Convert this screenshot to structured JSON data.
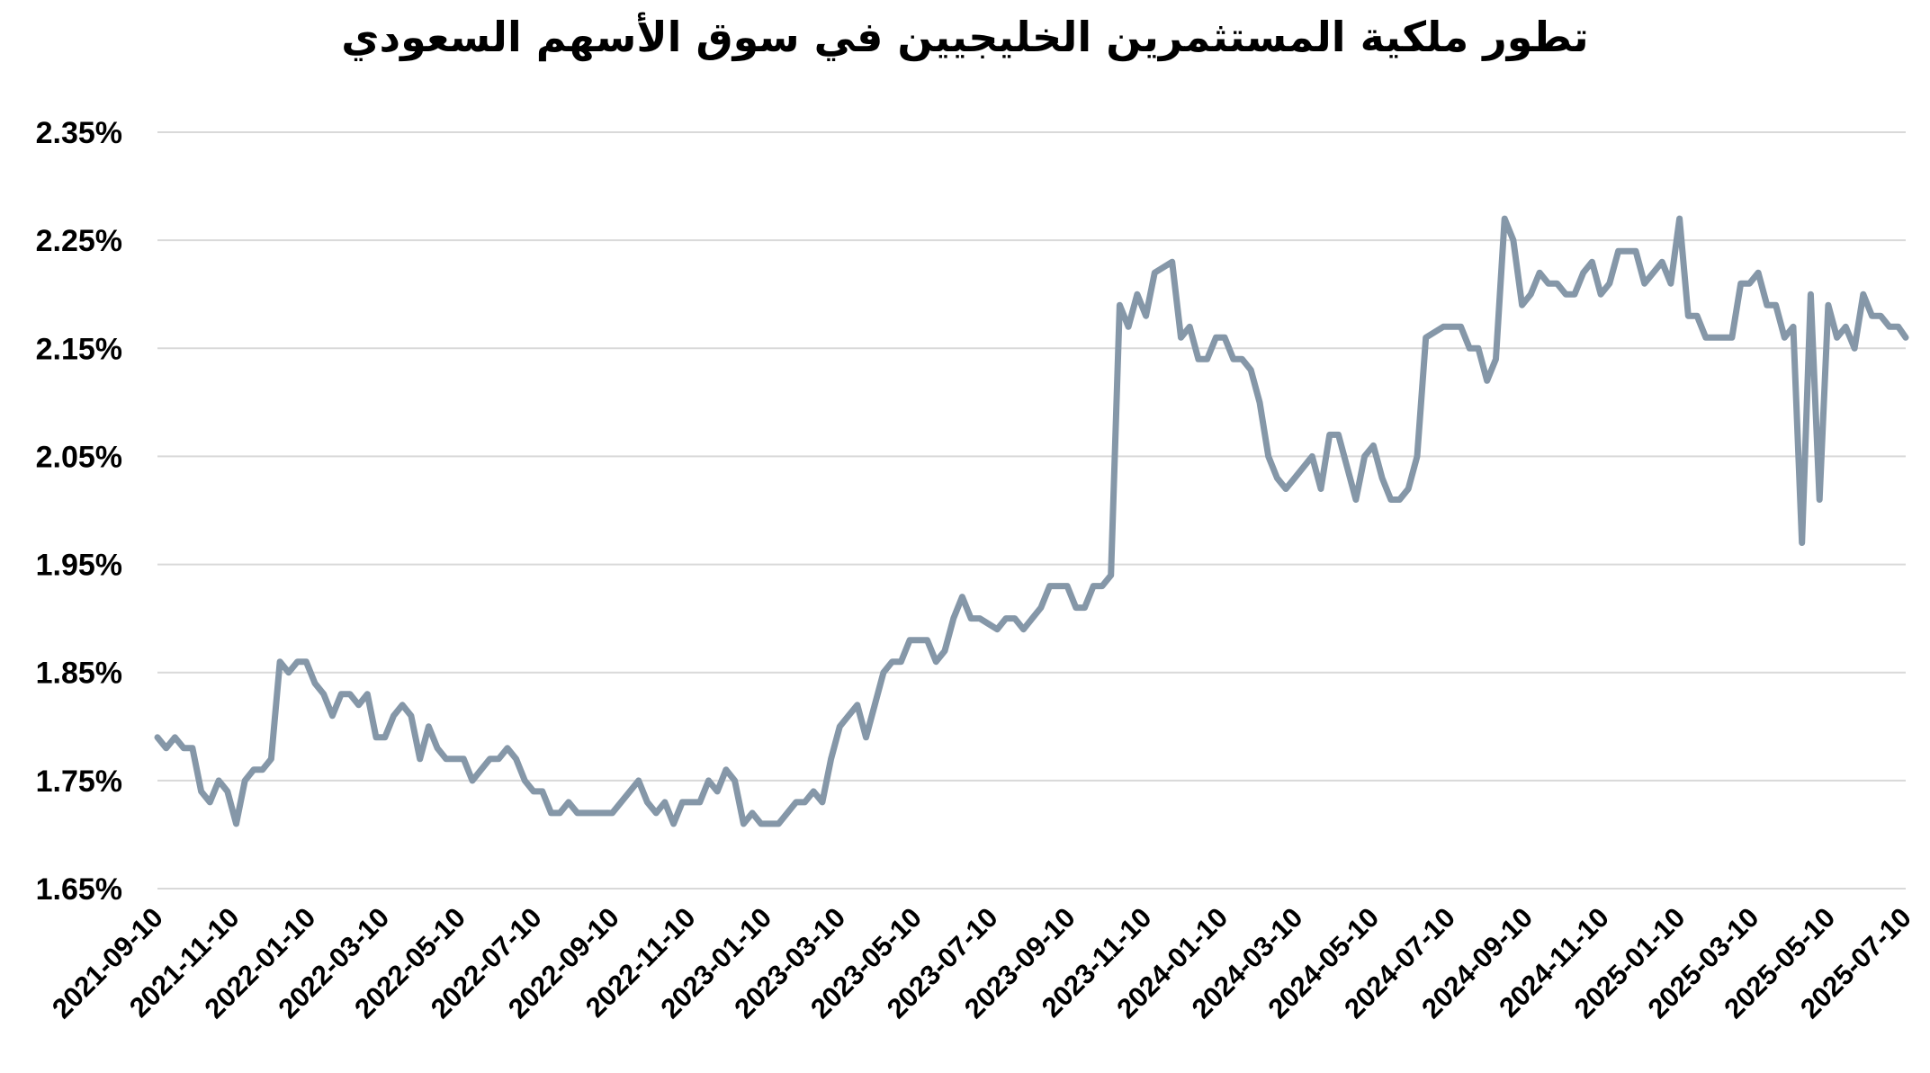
{
  "chart_data": {
    "type": "line",
    "title": "تطور ملكية المستثمرين الخليجيين في سوق الأسهم السعودي",
    "xlabel": "",
    "ylabel": "",
    "ylim": [
      1.65,
      2.35
    ],
    "y_ticks": [
      "1.65%",
      "1.75%",
      "1.85%",
      "1.95%",
      "2.05%",
      "2.15%",
      "2.25%",
      "2.35%"
    ],
    "y_tick_values": [
      1.65,
      1.75,
      1.85,
      1.95,
      2.05,
      2.15,
      2.25,
      2.35
    ],
    "x_ticks": [
      "2021-09-10",
      "2021-11-10",
      "2022-01-10",
      "2022-03-10",
      "2022-05-10",
      "2022-07-10",
      "2022-09-10",
      "2022-11-10",
      "2023-01-10",
      "2023-03-10",
      "2023-05-10",
      "2023-07-10",
      "2023-09-10",
      "2023-11-10",
      "2024-01-10",
      "2024-03-10",
      "2024-05-10",
      "2024-07-10",
      "2024-09-10",
      "2024-11-10",
      "2025-01-10",
      "2025-03-10",
      "2025-05-10",
      "2025-07-10"
    ],
    "x_range": [
      "2021-09-10",
      "2025-07-10"
    ],
    "grid": true,
    "legend": "none",
    "line_color": "#8597a8",
    "series": [
      {
        "points": [
          [
            "2021-09-10",
            1.79
          ],
          [
            "2021-09-17",
            1.78
          ],
          [
            "2021-09-24",
            1.79
          ],
          [
            "2021-10-01",
            1.78
          ],
          [
            "2021-10-08",
            1.78
          ],
          [
            "2021-10-15",
            1.74
          ],
          [
            "2021-10-22",
            1.73
          ],
          [
            "2021-10-29",
            1.75
          ],
          [
            "2021-11-05",
            1.74
          ],
          [
            "2021-11-12",
            1.71
          ],
          [
            "2021-11-19",
            1.75
          ],
          [
            "2021-11-26",
            1.76
          ],
          [
            "2021-12-03",
            1.76
          ],
          [
            "2021-12-10",
            1.77
          ],
          [
            "2021-12-17",
            1.86
          ],
          [
            "2021-12-24",
            1.85
          ],
          [
            "2021-12-31",
            1.86
          ],
          [
            "2022-01-07",
            1.86
          ],
          [
            "2022-01-14",
            1.84
          ],
          [
            "2022-01-21",
            1.83
          ],
          [
            "2022-01-28",
            1.81
          ],
          [
            "2022-02-04",
            1.83
          ],
          [
            "2022-02-11",
            1.83
          ],
          [
            "2022-02-18",
            1.82
          ],
          [
            "2022-02-25",
            1.83
          ],
          [
            "2022-03-04",
            1.79
          ],
          [
            "2022-03-11",
            1.79
          ],
          [
            "2022-03-18",
            1.81
          ],
          [
            "2022-03-25",
            1.82
          ],
          [
            "2022-04-01",
            1.81
          ],
          [
            "2022-04-08",
            1.77
          ],
          [
            "2022-04-15",
            1.8
          ],
          [
            "2022-04-22",
            1.78
          ],
          [
            "2022-04-29",
            1.77
          ],
          [
            "2022-05-06",
            1.77
          ],
          [
            "2022-05-13",
            1.77
          ],
          [
            "2022-05-20",
            1.75
          ],
          [
            "2022-05-27",
            1.76
          ],
          [
            "2022-06-03",
            1.77
          ],
          [
            "2022-06-10",
            1.77
          ],
          [
            "2022-06-17",
            1.78
          ],
          [
            "2022-06-24",
            1.77
          ],
          [
            "2022-07-01",
            1.75
          ],
          [
            "2022-07-08",
            1.74
          ],
          [
            "2022-07-15",
            1.74
          ],
          [
            "2022-07-22",
            1.72
          ],
          [
            "2022-07-29",
            1.72
          ],
          [
            "2022-08-05",
            1.73
          ],
          [
            "2022-08-12",
            1.72
          ],
          [
            "2022-08-19",
            1.72
          ],
          [
            "2022-08-26",
            1.72
          ],
          [
            "2022-09-02",
            1.72
          ],
          [
            "2022-09-09",
            1.72
          ],
          [
            "2022-09-16",
            1.73
          ],
          [
            "2022-09-23",
            1.74
          ],
          [
            "2022-09-30",
            1.75
          ],
          [
            "2022-10-07",
            1.73
          ],
          [
            "2022-10-14",
            1.72
          ],
          [
            "2022-10-21",
            1.73
          ],
          [
            "2022-10-28",
            1.71
          ],
          [
            "2022-11-04",
            1.73
          ],
          [
            "2022-11-11",
            1.73
          ],
          [
            "2022-11-18",
            1.73
          ],
          [
            "2022-11-25",
            1.75
          ],
          [
            "2022-12-02",
            1.74
          ],
          [
            "2022-12-09",
            1.76
          ],
          [
            "2022-12-16",
            1.75
          ],
          [
            "2022-12-23",
            1.71
          ],
          [
            "2022-12-30",
            1.72
          ],
          [
            "2023-01-06",
            1.71
          ],
          [
            "2023-01-13",
            1.71
          ],
          [
            "2023-01-20",
            1.71
          ],
          [
            "2023-01-27",
            1.72
          ],
          [
            "2023-02-03",
            1.73
          ],
          [
            "2023-02-10",
            1.73
          ],
          [
            "2023-02-17",
            1.74
          ],
          [
            "2023-02-24",
            1.73
          ],
          [
            "2023-03-03",
            1.77
          ],
          [
            "2023-03-10",
            1.8
          ],
          [
            "2023-03-17",
            1.81
          ],
          [
            "2023-03-24",
            1.82
          ],
          [
            "2023-03-31",
            1.79
          ],
          [
            "2023-04-07",
            1.82
          ],
          [
            "2023-04-14",
            1.85
          ],
          [
            "2023-04-21",
            1.86
          ],
          [
            "2023-04-28",
            1.86
          ],
          [
            "2023-05-05",
            1.88
          ],
          [
            "2023-05-12",
            1.88
          ],
          [
            "2023-05-19",
            1.88
          ],
          [
            "2023-05-26",
            1.86
          ],
          [
            "2023-06-02",
            1.87
          ],
          [
            "2023-06-09",
            1.9
          ],
          [
            "2023-06-16",
            1.92
          ],
          [
            "2023-06-23",
            1.9
          ],
          [
            "2023-06-30",
            1.9
          ],
          [
            "2023-07-07",
            1.895
          ],
          [
            "2023-07-14",
            1.89
          ],
          [
            "2023-07-21",
            1.9
          ],
          [
            "2023-07-28",
            1.9
          ],
          [
            "2023-08-04",
            1.89
          ],
          [
            "2023-08-11",
            1.9
          ],
          [
            "2023-08-18",
            1.91
          ],
          [
            "2023-08-25",
            1.93
          ],
          [
            "2023-09-01",
            1.93
          ],
          [
            "2023-09-08",
            1.93
          ],
          [
            "2023-09-15",
            1.91
          ],
          [
            "2023-09-22",
            1.91
          ],
          [
            "2023-09-29",
            1.93
          ],
          [
            "2023-10-06",
            1.93
          ],
          [
            "2023-10-13",
            1.94
          ],
          [
            "2023-10-20",
            2.19
          ],
          [
            "2023-10-27",
            2.17
          ],
          [
            "2023-11-03",
            2.2
          ],
          [
            "2023-11-10",
            2.18
          ],
          [
            "2023-11-17",
            2.22
          ],
          [
            "2023-11-24",
            2.225
          ],
          [
            "2023-12-01",
            2.23
          ],
          [
            "2023-12-08",
            2.16
          ],
          [
            "2023-12-15",
            2.17
          ],
          [
            "2023-12-22",
            2.14
          ],
          [
            "2023-12-29",
            2.14
          ],
          [
            "2024-01-05",
            2.16
          ],
          [
            "2024-01-12",
            2.16
          ],
          [
            "2024-01-19",
            2.14
          ],
          [
            "2024-01-26",
            2.14
          ],
          [
            "2024-02-02",
            2.13
          ],
          [
            "2024-02-09",
            2.1
          ],
          [
            "2024-02-16",
            2.05
          ],
          [
            "2024-02-23",
            2.03
          ],
          [
            "2024-03-01",
            2.02
          ],
          [
            "2024-03-08",
            2.03
          ],
          [
            "2024-03-15",
            2.04
          ],
          [
            "2024-03-22",
            2.05
          ],
          [
            "2024-03-29",
            2.02
          ],
          [
            "2024-04-05",
            2.07
          ],
          [
            "2024-04-12",
            2.07
          ],
          [
            "2024-04-19",
            2.04
          ],
          [
            "2024-04-26",
            2.01
          ],
          [
            "2024-05-03",
            2.05
          ],
          [
            "2024-05-10",
            2.06
          ],
          [
            "2024-05-17",
            2.03
          ],
          [
            "2024-05-24",
            2.01
          ],
          [
            "2024-05-31",
            2.01
          ],
          [
            "2024-06-07",
            2.02
          ],
          [
            "2024-06-14",
            2.05
          ],
          [
            "2024-06-21",
            2.16
          ],
          [
            "2024-06-28",
            2.165
          ],
          [
            "2024-07-05",
            2.17
          ],
          [
            "2024-07-12",
            2.17
          ],
          [
            "2024-07-19",
            2.17
          ],
          [
            "2024-07-26",
            2.15
          ],
          [
            "2024-08-02",
            2.15
          ],
          [
            "2024-08-09",
            2.12
          ],
          [
            "2024-08-16",
            2.14
          ],
          [
            "2024-08-23",
            2.27
          ],
          [
            "2024-08-30",
            2.25
          ],
          [
            "2024-09-06",
            2.19
          ],
          [
            "2024-09-13",
            2.2
          ],
          [
            "2024-09-20",
            2.22
          ],
          [
            "2024-09-27",
            2.21
          ],
          [
            "2024-10-04",
            2.21
          ],
          [
            "2024-10-11",
            2.2
          ],
          [
            "2024-10-18",
            2.2
          ],
          [
            "2024-10-25",
            2.22
          ],
          [
            "2024-11-01",
            2.23
          ],
          [
            "2024-11-08",
            2.2
          ],
          [
            "2024-11-15",
            2.21
          ],
          [
            "2024-11-22",
            2.24
          ],
          [
            "2024-11-29",
            2.24
          ],
          [
            "2024-12-06",
            2.24
          ],
          [
            "2024-12-13",
            2.21
          ],
          [
            "2024-12-20",
            2.22
          ],
          [
            "2024-12-27",
            2.23
          ],
          [
            "2025-01-03",
            2.21
          ],
          [
            "2025-01-10",
            2.27
          ],
          [
            "2025-01-17",
            2.18
          ],
          [
            "2025-01-24",
            2.18
          ],
          [
            "2025-01-31",
            2.16
          ],
          [
            "2025-02-07",
            2.16
          ],
          [
            "2025-02-14",
            2.16
          ],
          [
            "2025-02-21",
            2.16
          ],
          [
            "2025-02-28",
            2.21
          ],
          [
            "2025-03-07",
            2.21
          ],
          [
            "2025-03-14",
            2.22
          ],
          [
            "2025-03-21",
            2.19
          ],
          [
            "2025-03-28",
            2.19
          ],
          [
            "2025-04-04",
            2.16
          ],
          [
            "2025-04-11",
            2.17
          ],
          [
            "2025-04-18",
            1.97
          ],
          [
            "2025-04-25",
            2.2
          ],
          [
            "2025-05-02",
            2.01
          ],
          [
            "2025-05-09",
            2.19
          ],
          [
            "2025-05-16",
            2.16
          ],
          [
            "2025-05-23",
            2.17
          ],
          [
            "2025-05-30",
            2.15
          ],
          [
            "2025-06-06",
            2.2
          ],
          [
            "2025-06-13",
            2.18
          ],
          [
            "2025-06-20",
            2.18
          ],
          [
            "2025-06-27",
            2.17
          ],
          [
            "2025-07-04",
            2.17
          ],
          [
            "2025-07-10",
            2.16
          ],
          [
            "2025-07-17",
            2.16
          ]
        ]
      }
    ]
  }
}
